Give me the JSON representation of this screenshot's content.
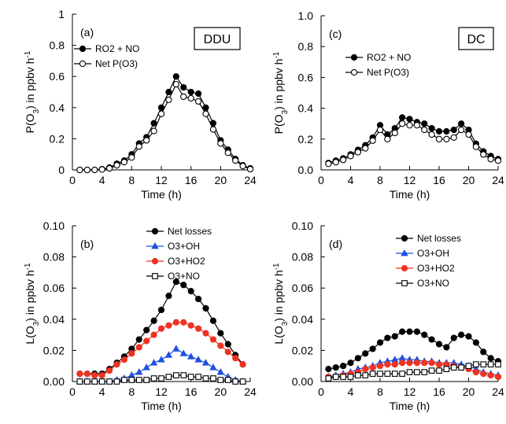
{
  "chart_data": [
    {
      "type": "line",
      "panel_label": "(a)",
      "box_label": "DDU",
      "xlabel": "Time (h)",
      "ylabel": "P(O3) in ppbv h-1",
      "xlim": [
        0,
        24
      ],
      "ylim": [
        0,
        1
      ],
      "xticks": [
        0,
        4,
        8,
        12,
        16,
        20,
        24
      ],
      "yticks": [
        0,
        0.2,
        0.4,
        0.6,
        0.8,
        1
      ],
      "ytick_labels": [
        "0",
        "0.2",
        "0.4",
        "0.6",
        "0.8",
        "1"
      ],
      "legend": "top-left",
      "series": [
        {
          "name": "RO2 + NO",
          "marker": "filled-circle",
          "color": "#000000",
          "x": [
            1,
            2,
            3,
            4,
            5,
            6,
            7,
            8,
            9,
            10,
            11,
            12,
            13,
            14,
            15,
            16,
            17,
            18,
            19,
            20,
            21,
            22,
            23,
            24
          ],
          "y": [
            0.0,
            0.0,
            0.0,
            0.005,
            0.015,
            0.04,
            0.06,
            0.1,
            0.17,
            0.21,
            0.3,
            0.4,
            0.5,
            0.6,
            0.53,
            0.5,
            0.49,
            0.4,
            0.3,
            0.19,
            0.13,
            0.07,
            0.03,
            0.01
          ]
        },
        {
          "name": "Net P(O3)",
          "marker": "open-circle",
          "color": "#000000",
          "x": [
            1,
            2,
            3,
            4,
            5,
            6,
            7,
            8,
            9,
            10,
            11,
            12,
            13,
            14,
            15,
            16,
            17,
            18,
            19,
            20,
            21,
            22,
            23,
            24
          ],
          "y": [
            0.0,
            0.0,
            0.0,
            0.003,
            0.01,
            0.03,
            0.05,
            0.08,
            0.15,
            0.19,
            0.25,
            0.36,
            0.45,
            0.55,
            0.47,
            0.46,
            0.44,
            0.36,
            0.26,
            0.17,
            0.11,
            0.06,
            0.025,
            0.005
          ]
        }
      ]
    },
    {
      "type": "line",
      "panel_label": "(c)",
      "box_label": "DC",
      "xlabel": "Time (h)",
      "ylabel": "P(O3) in ppbv h-1",
      "xlim": [
        0,
        24
      ],
      "ylim": [
        0,
        1
      ],
      "xticks": [
        0,
        4,
        8,
        12,
        16,
        20,
        24
      ],
      "yticks": [
        0,
        0.2,
        0.4,
        0.6,
        0.8,
        1
      ],
      "ytick_labels": [
        "0.0",
        "0.2",
        "0.4",
        "0.6",
        "0.8",
        "1.0"
      ],
      "legend": "top-center",
      "series": [
        {
          "name": "RO2 + NO",
          "marker": "filled-circle",
          "color": "#000000",
          "x": [
            1,
            2,
            3,
            4,
            5,
            6,
            7,
            8,
            9,
            10,
            11,
            12,
            13,
            14,
            15,
            16,
            17,
            18,
            19,
            20,
            21,
            22,
            23,
            24
          ],
          "y": [
            0.045,
            0.06,
            0.075,
            0.1,
            0.13,
            0.16,
            0.21,
            0.29,
            0.23,
            0.27,
            0.34,
            0.33,
            0.31,
            0.3,
            0.27,
            0.25,
            0.25,
            0.26,
            0.3,
            0.26,
            0.17,
            0.12,
            0.09,
            0.07
          ]
        },
        {
          "name": "Net P(O3)",
          "marker": "open-circle",
          "color": "#000000",
          "x": [
            1,
            2,
            3,
            4,
            5,
            6,
            7,
            8,
            9,
            10,
            11,
            12,
            13,
            14,
            15,
            16,
            17,
            18,
            19,
            20,
            21,
            22,
            23,
            24
          ],
          "y": [
            0.04,
            0.05,
            0.065,
            0.09,
            0.115,
            0.14,
            0.19,
            0.26,
            0.2,
            0.24,
            0.3,
            0.29,
            0.29,
            0.26,
            0.23,
            0.2,
            0.2,
            0.21,
            0.26,
            0.23,
            0.15,
            0.1,
            0.07,
            0.06
          ]
        }
      ]
    },
    {
      "type": "line",
      "panel_label": "(b)",
      "xlabel": "Time (h)",
      "ylabel": "L(O3) in ppbv h-1",
      "xlim": [
        0,
        24
      ],
      "ylim": [
        0,
        0.1
      ],
      "xticks": [
        0,
        4,
        8,
        12,
        16,
        20,
        24
      ],
      "yticks": [
        0,
        0.02,
        0.04,
        0.06,
        0.08,
        0.1
      ],
      "ytick_labels": [
        "0.00",
        "0.02",
        "0.04",
        "0.06",
        "0.08",
        "0.10"
      ],
      "legend": "top-right",
      "series": [
        {
          "name": "Net losses",
          "marker": "filled-circle",
          "color": "#000000",
          "x": [
            1,
            2,
            3,
            4,
            5,
            6,
            7,
            8,
            9,
            10,
            11,
            12,
            13,
            14,
            15,
            16,
            17,
            18,
            19,
            20,
            21,
            22,
            23
          ],
          "y": [
            0.005,
            0.005,
            0.005,
            0.005,
            0.008,
            0.012,
            0.016,
            0.021,
            0.027,
            0.033,
            0.039,
            0.046,
            0.055,
            0.064,
            0.062,
            0.058,
            0.053,
            0.047,
            0.039,
            0.031,
            0.024,
            0.017,
            0.011
          ]
        },
        {
          "name": "O3+OH",
          "marker": "triangle",
          "color": "#1f4fe0",
          "x": [
            1,
            2,
            3,
            4,
            5,
            6,
            7,
            8,
            9,
            10,
            11,
            12,
            13,
            14,
            15,
            16,
            17,
            18,
            19,
            20,
            21,
            22,
            23
          ],
          "y": [
            0.0,
            0.0,
            0.0,
            0.0,
            0.0,
            0.001,
            0.002,
            0.004,
            0.006,
            0.009,
            0.012,
            0.014,
            0.017,
            0.021,
            0.018,
            0.016,
            0.014,
            0.012,
            0.009,
            0.006,
            0.003,
            0.001,
            0.0
          ]
        },
        {
          "name": "O3+HO2",
          "marker": "filled-circle",
          "color": "#ee3322",
          "x": [
            1,
            2,
            3,
            4,
            5,
            6,
            7,
            8,
            9,
            10,
            11,
            12,
            13,
            14,
            15,
            16,
            17,
            18,
            19,
            20,
            21,
            22,
            23
          ],
          "y": [
            0.005,
            0.005,
            0.004,
            0.004,
            0.007,
            0.011,
            0.014,
            0.018,
            0.022,
            0.026,
            0.03,
            0.034,
            0.036,
            0.038,
            0.038,
            0.036,
            0.034,
            0.031,
            0.027,
            0.023,
            0.019,
            0.015,
            0.011
          ]
        },
        {
          "name": "O3+NO",
          "marker": "open-square",
          "color": "#000000",
          "x": [
            1,
            2,
            3,
            4,
            5,
            6,
            7,
            8,
            9,
            10,
            11,
            12,
            13,
            14,
            15,
            16,
            17,
            18,
            19,
            20,
            21,
            22,
            23
          ],
          "y": [
            0.0,
            0.0,
            0.0,
            0.0,
            0.0,
            0.0,
            0.001,
            0.001,
            0.001,
            0.001,
            0.002,
            0.002,
            0.003,
            0.004,
            0.004,
            0.003,
            0.003,
            0.002,
            0.002,
            0.001,
            0.001,
            0.0,
            0.0
          ]
        }
      ]
    },
    {
      "type": "line",
      "panel_label": "(d)",
      "xlabel": "Time (h)",
      "ylabel": "L(O3) in ppbv h-1",
      "xlim": [
        0,
        24
      ],
      "ylim": [
        0,
        0.1
      ],
      "xticks": [
        0,
        4,
        8,
        12,
        16,
        20,
        24
      ],
      "yticks": [
        0,
        0.02,
        0.04,
        0.06,
        0.08,
        0.1
      ],
      "ytick_labels": [
        "0.00",
        "0.02",
        "0.04",
        "0.06",
        "0.08",
        "0.10"
      ],
      "legend": "top-right",
      "series": [
        {
          "name": "Net losses",
          "marker": "filled-circle",
          "color": "#000000",
          "x": [
            1,
            2,
            3,
            4,
            5,
            6,
            7,
            8,
            9,
            10,
            11,
            12,
            13,
            14,
            15,
            16,
            17,
            18,
            19,
            20,
            21,
            22,
            23,
            24
          ],
          "y": [
            0.008,
            0.009,
            0.01,
            0.012,
            0.015,
            0.018,
            0.021,
            0.025,
            0.028,
            0.029,
            0.032,
            0.032,
            0.032,
            0.03,
            0.027,
            0.024,
            0.022,
            0.028,
            0.03,
            0.029,
            0.025,
            0.019,
            0.015,
            0.013
          ]
        },
        {
          "name": "O3+OH",
          "marker": "triangle",
          "color": "#1f4fe0",
          "x": [
            1,
            2,
            3,
            4,
            5,
            6,
            7,
            8,
            9,
            10,
            11,
            12,
            13,
            14,
            15,
            16,
            17,
            18,
            19,
            20,
            21,
            22,
            23,
            24
          ],
          "y": [
            0.003,
            0.004,
            0.005,
            0.006,
            0.008,
            0.009,
            0.01,
            0.012,
            0.013,
            0.014,
            0.015,
            0.014,
            0.014,
            0.013,
            0.013,
            0.012,
            0.012,
            0.012,
            0.011,
            0.01,
            0.008,
            0.006,
            0.005,
            0.004
          ]
        },
        {
          "name": "O3+HO2",
          "marker": "filled-circle",
          "color": "#ee3322",
          "x": [
            1,
            2,
            3,
            4,
            5,
            6,
            7,
            8,
            9,
            10,
            11,
            12,
            13,
            14,
            15,
            16,
            17,
            18,
            19,
            20,
            21,
            22,
            23,
            24
          ],
          "y": [
            0.003,
            0.003,
            0.004,
            0.005,
            0.006,
            0.008,
            0.009,
            0.01,
            0.011,
            0.011,
            0.012,
            0.012,
            0.012,
            0.012,
            0.012,
            0.011,
            0.011,
            0.01,
            0.009,
            0.008,
            0.006,
            0.005,
            0.004,
            0.003
          ]
        },
        {
          "name": "O3+NO",
          "marker": "open-square",
          "color": "#000000",
          "x": [
            1,
            2,
            3,
            4,
            5,
            6,
            7,
            8,
            9,
            10,
            11,
            12,
            13,
            14,
            15,
            16,
            17,
            18,
            19,
            20,
            21,
            22,
            23,
            24
          ],
          "y": [
            0.002,
            0.003,
            0.003,
            0.003,
            0.004,
            0.004,
            0.005,
            0.005,
            0.005,
            0.005,
            0.005,
            0.006,
            0.006,
            0.006,
            0.007,
            0.007,
            0.008,
            0.009,
            0.009,
            0.01,
            0.011,
            0.011,
            0.011,
            0.011
          ]
        }
      ]
    }
  ]
}
